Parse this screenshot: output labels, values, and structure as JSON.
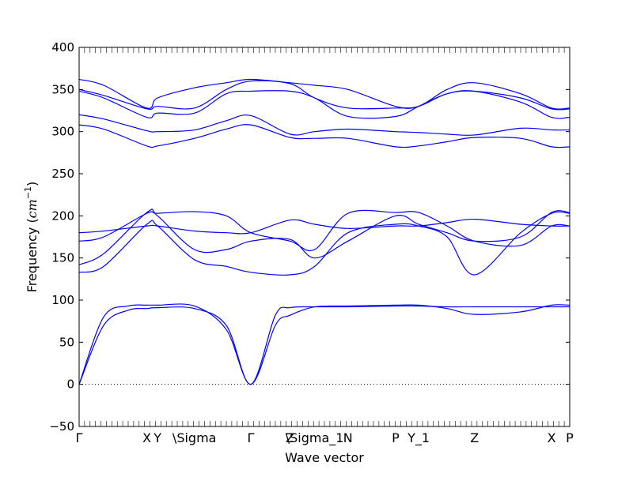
{
  "chart_data": {
    "type": "line",
    "xlabel": "Wave vector",
    "ylabel_main": "Frequency (",
    "ylabel_unit": "cm",
    "ylabel_exp": "−1",
    "ylabel_close": ")",
    "ylim": [
      -50,
      400
    ],
    "y_ticks": [
      -50,
      0,
      50,
      100,
      150,
      200,
      250,
      300,
      350,
      400
    ],
    "x_ticks": [
      {
        "label": "Γ",
        "x": 0.0
      },
      {
        "label": "X",
        "x": 0.138
      },
      {
        "label": "Y",
        "x": 0.16
      },
      {
        "label": "\\Sigma",
        "x": 0.235
      },
      {
        "label": "Γ",
        "x": 0.35
      },
      {
        "label": "Z",
        "x": 0.43
      },
      {
        "label": "\\Sigma_1",
        "x": 0.48
      },
      {
        "label": "N",
        "x": 0.548
      },
      {
        "label": "P",
        "x": 0.645
      },
      {
        "label": "Y_1",
        "x": 0.692
      },
      {
        "label": "Z",
        "x": 0.806
      },
      {
        "label": "X",
        "x": 0.963
      },
      {
        "label": "P",
        "x": 1.0
      }
    ],
    "zero_line": true,
    "series_color": "#0000ff",
    "series": [
      {
        "x": [
          0,
          0.05,
          0.1,
          0.138,
          0.16,
          0.235,
          0.3,
          0.35,
          0.4,
          0.43,
          0.48,
          0.548,
          0.645,
          0.692,
          0.75,
          0.806,
          0.9,
          0.963,
          1.0
        ],
        "y": [
          0,
          80,
          93,
          94,
          94,
          93,
          65,
          0,
          70,
          82,
          92,
          93,
          94,
          94,
          90,
          83,
          86,
          94,
          94
        ]
      },
      {
        "x": [
          0,
          0.05,
          0.1,
          0.138,
          0.16,
          0.235,
          0.3,
          0.35,
          0.4,
          0.43,
          0.48,
          0.548,
          0.645,
          0.692,
          0.75,
          0.806,
          0.9,
          0.963,
          1.0
        ],
        "y": [
          0,
          70,
          88,
          90,
          91,
          90,
          70,
          0,
          82,
          91,
          92,
          92,
          93,
          93,
          92,
          92,
          92,
          92,
          92
        ]
      },
      {
        "x": [
          0,
          0.05,
          0.138,
          0.16,
          0.235,
          0.3,
          0.35,
          0.43,
          0.48,
          0.548,
          0.645,
          0.692,
          0.75,
          0.806,
          0.9,
          0.963,
          1.0
        ],
        "y": [
          133,
          140,
          190,
          188,
          148,
          140,
          133,
          130,
          140,
          180,
          190,
          188,
          175,
          130,
          180,
          203,
          203
        ]
      },
      {
        "x": [
          0,
          0.05,
          0.138,
          0.16,
          0.235,
          0.3,
          0.35,
          0.43,
          0.48,
          0.548,
          0.645,
          0.692,
          0.75,
          0.806,
          0.9,
          0.963,
          1.0
        ],
        "y": [
          142,
          155,
          204,
          200,
          160,
          160,
          170,
          172,
          150,
          170,
          200,
          190,
          180,
          170,
          175,
          204,
          204
        ]
      },
      {
        "x": [
          0,
          0.05,
          0.138,
          0.16,
          0.235,
          0.3,
          0.35,
          0.43,
          0.48,
          0.548,
          0.645,
          0.692,
          0.75,
          0.806,
          0.9,
          0.963,
          1.0
        ],
        "y": [
          170,
          175,
          203,
          203,
          205,
          200,
          180,
          170,
          160,
          203,
          204,
          204,
          188,
          170,
          165,
          188,
          188
        ]
      },
      {
        "x": [
          0,
          0.05,
          0.138,
          0.16,
          0.235,
          0.3,
          0.35,
          0.43,
          0.48,
          0.548,
          0.645,
          0.692,
          0.75,
          0.806,
          0.9,
          0.963,
          1.0
        ],
        "y": [
          180,
          182,
          188,
          188,
          182,
          180,
          180,
          195,
          190,
          185,
          188,
          188,
          192,
          196,
          190,
          188,
          188
        ]
      },
      {
        "x": [
          0,
          0.05,
          0.138,
          0.16,
          0.235,
          0.3,
          0.35,
          0.43,
          0.48,
          0.548,
          0.645,
          0.692,
          0.75,
          0.806,
          0.9,
          0.963,
          1.0
        ],
        "y": [
          308,
          303,
          283,
          283,
          292,
          303,
          308,
          293,
          292,
          292,
          282,
          283,
          288,
          293,
          292,
          282,
          282
        ]
      },
      {
        "x": [
          0,
          0.05,
          0.138,
          0.16,
          0.235,
          0.3,
          0.35,
          0.43,
          0.48,
          0.548,
          0.645,
          0.692,
          0.75,
          0.806,
          0.9,
          0.963,
          1.0
        ],
        "y": [
          320,
          315,
          301,
          300,
          302,
          313,
          319,
          297,
          300,
          303,
          300,
          299,
          297,
          296,
          304,
          302,
          302
        ]
      },
      {
        "x": [
          0,
          0.05,
          0.138,
          0.16,
          0.235,
          0.3,
          0.35,
          0.43,
          0.48,
          0.548,
          0.645,
          0.692,
          0.75,
          0.806,
          0.9,
          0.963,
          1.0
        ],
        "y": [
          348,
          340,
          317,
          322,
          322,
          345,
          348,
          348,
          340,
          318,
          318,
          330,
          345,
          348,
          335,
          317,
          317
        ]
      },
      {
        "x": [
          0,
          0.05,
          0.138,
          0.16,
          0.235,
          0.3,
          0.35,
          0.43,
          0.48,
          0.548,
          0.645,
          0.692,
          0.75,
          0.806,
          0.9,
          0.963,
          1.0
        ],
        "y": [
          350,
          343,
          327,
          330,
          328,
          350,
          360,
          357,
          340,
          328,
          328,
          330,
          345,
          348,
          340,
          327,
          327
        ]
      },
      {
        "x": [
          0,
          0.05,
          0.138,
          0.16,
          0.235,
          0.3,
          0.35,
          0.43,
          0.48,
          0.548,
          0.645,
          0.692,
          0.75,
          0.806,
          0.9,
          0.963,
          1.0
        ],
        "y": [
          362,
          355,
          328,
          340,
          352,
          358,
          362,
          358,
          355,
          350,
          330,
          330,
          350,
          358,
          345,
          328,
          328
        ]
      }
    ]
  }
}
